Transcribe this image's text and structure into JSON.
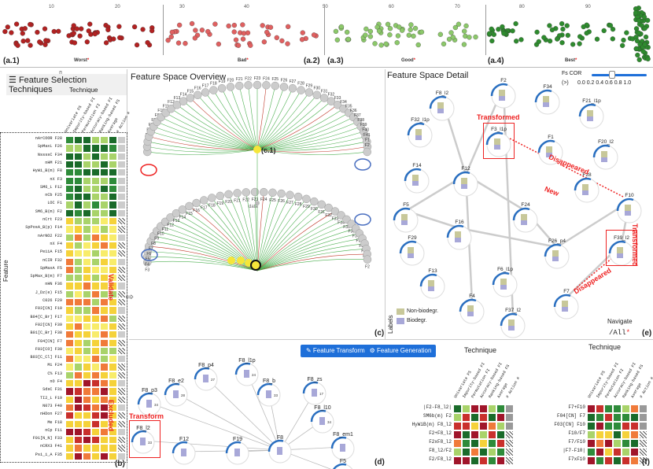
{
  "top_strip": {
    "ticks": [
      "10",
      "20",
      "30",
      "40",
      "50",
      "60",
      "70",
      "80",
      "90"
    ],
    "groups": [
      {
        "id": "(a.1)",
        "name": "Worst"
      },
      {
        "id": "(a.2)",
        "name": "Bad"
      },
      {
        "id": "(a.3)",
        "name": "Good"
      },
      {
        "id": "(a.4)",
        "name": "Best"
      }
    ],
    "colors": {
      "worst": "#b22222",
      "bad": "#e06060",
      "good": "#8cc86a",
      "best": "#2e8b2e"
    }
  },
  "panel_b": {
    "header": "Feature Selection Techniques",
    "technique_label": "Technique",
    "feature_axis": "Feature",
    "id": "(b)",
    "columns": [
      "Univariate FS",
      "Impurity-based FI",
      "Permutation FI",
      "Accuracy-based FI",
      "Ranking-based FS",
      "Average",
      "# Action #"
    ],
    "rows": [
      "nArCOOR F28",
      "SpMaxL F26",
      "NssssC F34",
      "nHM F21",
      "HyWi_B(m) F8",
      "nX F3",
      "SM6_L F12",
      "nCb F25",
      "LOC F1",
      "SM6_B(m) F2",
      "nCrt F23",
      "SpPosA_B(p) F14",
      "nArNO2 F22",
      "nX F4",
      "PeiiA F15",
      "nCIR F32",
      "SpMaxA F5",
      "SpMax_B(m) F7",
      "nHN F36",
      "J_Dz(e) F15",
      "C026 F29",
      "F03[CN] F10",
      "B04[C_Br] F17",
      "F02[CN] F39",
      "B01[C_Br] F38",
      "F04[CN] F7",
      "F03[CO] F30",
      "B03[C_Cl] F11",
      "Mi F24",
      "C% F13",
      "nO F4",
      "SdsC F31",
      "TI2_L F19",
      "N073 F40",
      "nHDon F27",
      "Me F18",
      "nCp F11",
      "F01[N_N] F33",
      "nCRX3 F41",
      "Psi_i_A F35"
    ],
    "annotations": {
      "validate": "Validate",
      "excluded": "Excluded"
    }
  },
  "panel_c": {
    "header": "Feature Space Overview",
    "id": "(c)",
    "center_label": "(c.1)",
    "data_label": "data",
    "upper_nodes": [
      "F3",
      "F4",
      "F5",
      "F6",
      "F7",
      "F8",
      "F9",
      "F10",
      "F11",
      "F12",
      "F13",
      "F14",
      "F15",
      "F16",
      "F17",
      "F18",
      "F19",
      "F20",
      "F21",
      "F22",
      "F23",
      "F24",
      "F25",
      "F26",
      "F27",
      "F28",
      "F29",
      "F30",
      "F31",
      "F32",
      "F33",
      "F34",
      "F35",
      "F36",
      "F37",
      "F38",
      "F39",
      "F40",
      "F41",
      "F1",
      "F2"
    ]
  },
  "panel_e": {
    "header": "Feature Space Detail",
    "id": "(e)",
    "fs_cor": {
      "label": "Fs COR",
      "op": "(>)",
      "values": [
        "0.0",
        "0.2",
        "0.4",
        "0.6",
        "0.8",
        "1.0"
      ]
    },
    "nodes": [
      "F2",
      "F34",
      "F8_l2",
      "F21_l1p",
      "F32_l1p",
      "F3_l1p",
      "F1",
      "F20_l2",
      "F14",
      "F12",
      "F28",
      "F10",
      "F5",
      "F24",
      "F16",
      "F39_l2",
      "F29",
      "F26_p4",
      "F6_l1p",
      "F13",
      "F7",
      "F4",
      "F37_l2"
    ],
    "annotations": {
      "transformed1": "Transformed",
      "transformed2": "Transformed",
      "disappeared1": "Disappeared",
      "disappeared2": "Disappeared",
      "new": "New"
    },
    "legend": {
      "title": "Labels",
      "items": [
        "Non-biodegr.",
        "Biodegr."
      ],
      "colors": [
        "#c8c89a",
        "#a8a8d8"
      ]
    },
    "navigate": {
      "label": "Navigate",
      "value": "/All"
    }
  },
  "panel_d": {
    "id": "(d)",
    "button1": "Feature Transformation",
    "transform_label": "Transform",
    "nodes": [
      "F8_p4",
      "F8_l1p",
      "F8_e2",
      "F8_p3",
      "F8_b",
      "F8_zs",
      "F8_l10",
      "F8_l2",
      "F12",
      "F19",
      "F8",
      "F8_em1",
      "F5"
    ],
    "values": [
      "27",
      "24",
      "28",
      "34",
      "33",
      "17",
      "34",
      "33"
    ]
  },
  "panel_f": {
    "id": "(f)",
    "button2": "Feature Generation",
    "technique_left": "Technique",
    "technique_right": "Technique",
    "left_rows": [
      "|F2-F8_l2|",
      "SM6b(m) F2",
      "HyWiB(m) F8_l2",
      "F2+F8_l2",
      "F2xF8_l2",
      "F8_l2/F2",
      "F2/F8_l2"
    ],
    "right_rows": [
      "F7+F10",
      "F04[CN] F7",
      "F03[CN] F10",
      "F10/F7",
      "F7/F10",
      "|F7-F10|",
      "F7xF10"
    ],
    "columns": [
      "Univariate FS",
      "Impurity-based FI",
      "Permutation FI",
      "Accuracy-based FI",
      "Ranking-based FS",
      "Average",
      "# Action #"
    ]
  }
}
